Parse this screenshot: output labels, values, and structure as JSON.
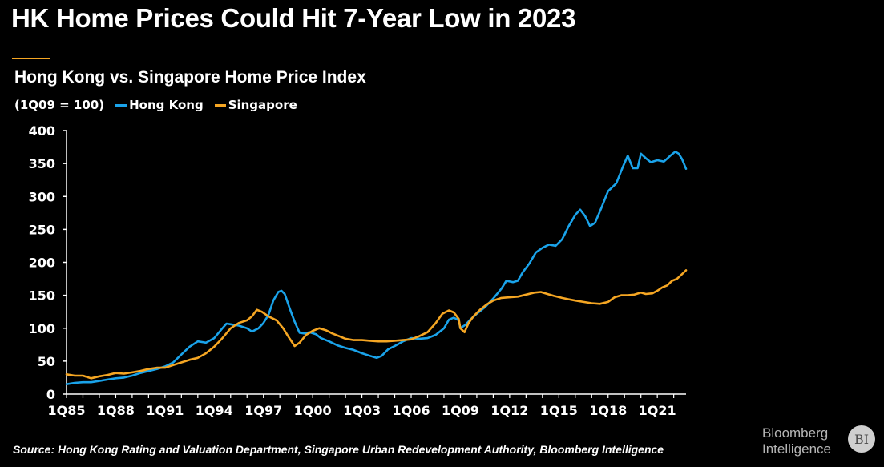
{
  "headline": "HK Home Prices Could Hit 7-Year Low in 2023",
  "chart_data": {
    "type": "line",
    "title": "Hong Kong vs. Singapore Home Price Index",
    "subtitle": "(1Q09 = 100)",
    "xlabel": "",
    "ylabel": "",
    "ylim": [
      0,
      400
    ],
    "xlim": [
      1985.0,
      2022.75
    ],
    "y_ticks": [
      "0",
      "50",
      "100",
      "150",
      "200",
      "250",
      "300",
      "350",
      "400"
    ],
    "x_tick_labels": [
      "1Q85",
      "1Q88",
      "1Q91",
      "1Q94",
      "1Q97",
      "1Q00",
      "1Q03",
      "1Q06",
      "1Q09",
      "1Q12",
      "1Q15",
      "1Q18",
      "1Q21"
    ],
    "grid": false,
    "legend": "top-left",
    "series": [
      {
        "name": "Hong Kong",
        "color": "#1aa3ea",
        "points": [
          [
            1985.0,
            15
          ],
          [
            1985.5,
            17
          ],
          [
            1986.0,
            18
          ],
          [
            1986.5,
            18
          ],
          [
            1987.0,
            20
          ],
          [
            1987.5,
            22
          ],
          [
            1988.0,
            24
          ],
          [
            1988.5,
            25
          ],
          [
            1989.0,
            28
          ],
          [
            1989.5,
            32
          ],
          [
            1990.0,
            35
          ],
          [
            1990.5,
            38
          ],
          [
            1991.0,
            42
          ],
          [
            1991.5,
            48
          ],
          [
            1992.0,
            60
          ],
          [
            1992.5,
            72
          ],
          [
            1993.0,
            80
          ],
          [
            1993.5,
            78
          ],
          [
            1994.0,
            85
          ],
          [
            1994.5,
            100
          ],
          [
            1994.75,
            107
          ],
          [
            1995.0,
            106
          ],
          [
            1995.5,
            104
          ],
          [
            1996.0,
            100
          ],
          [
            1996.3,
            95
          ],
          [
            1996.7,
            100
          ],
          [
            1997.0,
            108
          ],
          [
            1997.3,
            120
          ],
          [
            1997.6,
            142
          ],
          [
            1997.9,
            155
          ],
          [
            1998.1,
            157
          ],
          [
            1998.3,
            152
          ],
          [
            1998.6,
            130
          ],
          [
            1998.9,
            110
          ],
          [
            1999.2,
            93
          ],
          [
            1999.5,
            92
          ],
          [
            1999.8,
            94
          ],
          [
            2000.2,
            91
          ],
          [
            2000.5,
            85
          ],
          [
            2001.0,
            80
          ],
          [
            2001.5,
            74
          ],
          [
            2002.0,
            70
          ],
          [
            2002.5,
            67
          ],
          [
            2003.0,
            62
          ],
          [
            2003.5,
            58
          ],
          [
            2003.9,
            55
          ],
          [
            2004.2,
            58
          ],
          [
            2004.6,
            68
          ],
          [
            2005.0,
            73
          ],
          [
            2005.5,
            80
          ],
          [
            2006.0,
            85
          ],
          [
            2006.5,
            84
          ],
          [
            2007.0,
            85
          ],
          [
            2007.5,
            90
          ],
          [
            2008.0,
            100
          ],
          [
            2008.3,
            113
          ],
          [
            2008.6,
            116
          ],
          [
            2008.9,
            112
          ],
          [
            2009.0,
            100
          ],
          [
            2009.3,
            105
          ],
          [
            2009.6,
            113
          ],
          [
            2010.0,
            122
          ],
          [
            2010.5,
            132
          ],
          [
            2011.0,
            145
          ],
          [
            2011.5,
            160
          ],
          [
            2011.8,
            172
          ],
          [
            2012.2,
            170
          ],
          [
            2012.5,
            172
          ],
          [
            2012.8,
            185
          ],
          [
            2013.2,
            198
          ],
          [
            2013.6,
            215
          ],
          [
            2014.0,
            222
          ],
          [
            2014.4,
            227
          ],
          [
            2014.8,
            225
          ],
          [
            2015.2,
            235
          ],
          [
            2015.6,
            255
          ],
          [
            2016.0,
            272
          ],
          [
            2016.3,
            280
          ],
          [
            2016.6,
            270
          ],
          [
            2016.9,
            255
          ],
          [
            2017.2,
            260
          ],
          [
            2017.6,
            283
          ],
          [
            2018.0,
            308
          ],
          [
            2018.5,
            320
          ],
          [
            2018.9,
            345
          ],
          [
            2019.2,
            362
          ],
          [
            2019.5,
            343
          ],
          [
            2019.8,
            343
          ],
          [
            2020.0,
            365
          ],
          [
            2020.3,
            358
          ],
          [
            2020.6,
            352
          ],
          [
            2021.0,
            355
          ],
          [
            2021.4,
            353
          ],
          [
            2021.8,
            362
          ],
          [
            2022.1,
            368
          ],
          [
            2022.3,
            365
          ],
          [
            2022.5,
            357
          ],
          [
            2022.75,
            342
          ]
        ]
      },
      {
        "name": "Singapore",
        "color": "#f5a623",
        "points": [
          [
            1985.0,
            30
          ],
          [
            1985.5,
            28
          ],
          [
            1986.0,
            28
          ],
          [
            1986.5,
            24
          ],
          [
            1987.0,
            27
          ],
          [
            1987.5,
            29
          ],
          [
            1988.0,
            32
          ],
          [
            1988.5,
            31
          ],
          [
            1989.0,
            33
          ],
          [
            1989.5,
            35
          ],
          [
            1990.0,
            38
          ],
          [
            1990.5,
            40
          ],
          [
            1991.0,
            40
          ],
          [
            1991.5,
            44
          ],
          [
            1992.0,
            48
          ],
          [
            1992.5,
            52
          ],
          [
            1993.0,
            55
          ],
          [
            1993.5,
            62
          ],
          [
            1994.0,
            72
          ],
          [
            1994.5,
            85
          ],
          [
            1995.0,
            100
          ],
          [
            1995.5,
            108
          ],
          [
            1996.0,
            112
          ],
          [
            1996.3,
            118
          ],
          [
            1996.6,
            128
          ],
          [
            1996.9,
            125
          ],
          [
            1997.3,
            118
          ],
          [
            1997.8,
            112
          ],
          [
            1998.2,
            100
          ],
          [
            1998.6,
            84
          ],
          [
            1998.9,
            73
          ],
          [
            1999.2,
            78
          ],
          [
            1999.6,
            90
          ],
          [
            2000.0,
            96
          ],
          [
            2000.4,
            100
          ],
          [
            2000.8,
            97
          ],
          [
            2001.2,
            92
          ],
          [
            2001.6,
            88
          ],
          [
            2002.0,
            84
          ],
          [
            2002.5,
            82
          ],
          [
            2003.0,
            82
          ],
          [
            2003.5,
            81
          ],
          [
            2004.0,
            80
          ],
          [
            2004.5,
            80
          ],
          [
            2005.0,
            81
          ],
          [
            2005.5,
            82
          ],
          [
            2006.0,
            83
          ],
          [
            2006.5,
            88
          ],
          [
            2007.0,
            94
          ],
          [
            2007.5,
            108
          ],
          [
            2007.9,
            122
          ],
          [
            2008.3,
            127
          ],
          [
            2008.6,
            124
          ],
          [
            2008.9,
            114
          ],
          [
            2009.0,
            100
          ],
          [
            2009.25,
            94
          ],
          [
            2009.5,
            108
          ],
          [
            2009.8,
            118
          ],
          [
            2010.2,
            128
          ],
          [
            2010.6,
            136
          ],
          [
            2011.0,
            142
          ],
          [
            2011.5,
            146
          ],
          [
            2012.0,
            147
          ],
          [
            2012.5,
            148
          ],
          [
            2013.0,
            151
          ],
          [
            2013.5,
            154
          ],
          [
            2013.9,
            155
          ],
          [
            2014.3,
            152
          ],
          [
            2014.7,
            149
          ],
          [
            2015.2,
            146
          ],
          [
            2015.6,
            144
          ],
          [
            2016.0,
            142
          ],
          [
            2016.5,
            140
          ],
          [
            2017.0,
            138
          ],
          [
            2017.5,
            137
          ],
          [
            2018.0,
            140
          ],
          [
            2018.4,
            147
          ],
          [
            2018.8,
            150
          ],
          [
            2019.2,
            150
          ],
          [
            2019.6,
            151
          ],
          [
            2020.0,
            154
          ],
          [
            2020.3,
            152
          ],
          [
            2020.7,
            153
          ],
          [
            2021.0,
            157
          ],
          [
            2021.3,
            162
          ],
          [
            2021.6,
            165
          ],
          [
            2021.9,
            172
          ],
          [
            2022.2,
            175
          ],
          [
            2022.5,
            182
          ],
          [
            2022.75,
            188
          ]
        ]
      }
    ],
    "source": "Source: Hong Kong Rating and Valuation Department, Singapore Urban Redevelopment Authority, Bloomberg Intelligence"
  },
  "branding": {
    "line1": "Bloomberg",
    "line2": "Intelligence",
    "badge": "BI"
  }
}
